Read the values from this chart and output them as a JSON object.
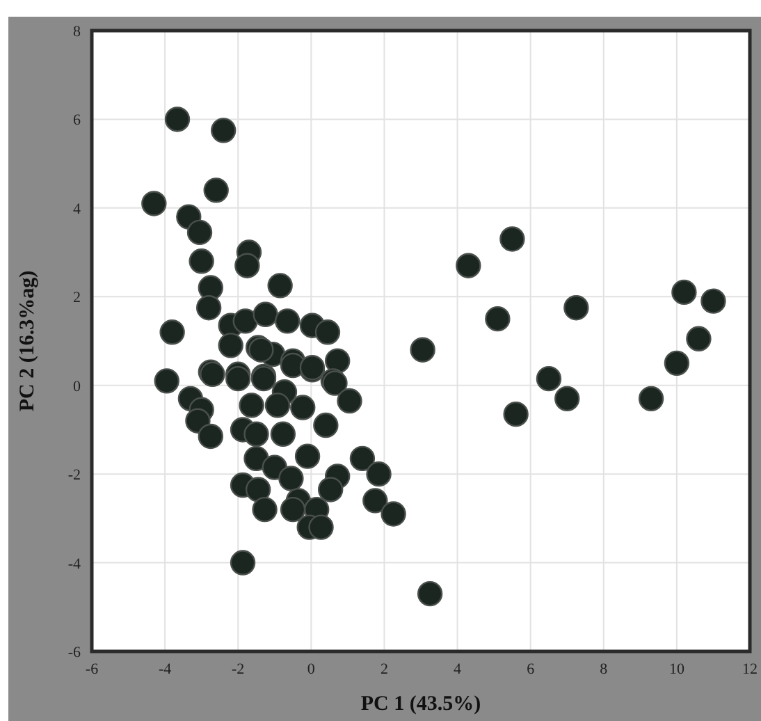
{
  "chart_data": {
    "type": "scatter",
    "xlabel": "PC 1 (43.5%)",
    "ylabel": "PC 2 (16.3%ag)",
    "xlim": [
      -6,
      12
    ],
    "ylim": [
      -6,
      8
    ],
    "xticks": [
      -6,
      -4,
      -2,
      0,
      2,
      4,
      6,
      8,
      10,
      12
    ],
    "yticks": [
      -6,
      -4,
      -2,
      0,
      2,
      4,
      6,
      8
    ],
    "grid": true,
    "marker": "circle",
    "series": [
      {
        "color": "#1c2620",
        "x": [
          3.05,
          3.25,
          4.3,
          5.5,
          5.1,
          5.6,
          7.25,
          6.5,
          7.0,
          9.3,
          10.2,
          11.0,
          10.6,
          10.0,
          1.4,
          1.85,
          1.75,
          2.25,
          -3.66,
          -2.4,
          -4.3,
          -2.6,
          -3.35,
          -3.05,
          -3.0,
          -1.7,
          -1.75,
          -2.75,
          -0.85,
          -2.8,
          -3.8,
          -2.2,
          -1.8,
          -1.25,
          -0.65,
          0.03,
          0.45,
          -2.2,
          -1.45,
          -1.05,
          -0.5,
          0.72,
          -3.95,
          -2.75,
          -2.0,
          -1.3,
          0.03,
          0.6,
          -1.37,
          -0.5,
          0.03,
          -2.7,
          -2.0,
          -1.3,
          0.65,
          -3.3,
          -3.0,
          -3.1,
          -2.75,
          1.05,
          -1.63,
          -0.73,
          -0.92,
          -0.23,
          0.4,
          -1.87,
          -1.5,
          -0.77,
          -0.1,
          -1.5,
          -1.0,
          -0.55,
          0.72,
          0.53,
          -1.87,
          -1.45,
          -1.27,
          -0.35,
          -0.5,
          0.15,
          -0.05,
          0.27,
          -1.87
        ],
        "values": [
          0.8,
          -4.7,
          2.7,
          3.3,
          1.5,
          -0.65,
          1.75,
          0.15,
          -0.3,
          -0.3,
          2.1,
          1.9,
          1.05,
          0.5,
          -1.65,
          -2.0,
          -2.6,
          -2.9,
          6.0,
          5.75,
          4.1,
          4.4,
          3.8,
          3.45,
          2.8,
          3.0,
          2.7,
          2.2,
          2.25,
          1.75,
          1.2,
          1.35,
          1.45,
          1.6,
          1.45,
          1.35,
          1.2,
          0.9,
          0.85,
          0.7,
          0.55,
          0.55,
          0.1,
          0.3,
          0.25,
          0.2,
          0.35,
          0.1,
          0.8,
          0.45,
          0.4,
          0.25,
          0.15,
          0.15,
          0.05,
          -0.3,
          -0.55,
          -0.8,
          -1.15,
          -0.35,
          -0.45,
          -0.15,
          -0.45,
          -0.5,
          -0.9,
          -1.0,
          -1.1,
          -1.1,
          -1.6,
          -1.65,
          -1.85,
          -2.1,
          -2.05,
          -2.35,
          -2.25,
          -2.35,
          -2.8,
          -2.6,
          -2.8,
          -2.8,
          -3.2,
          -3.2,
          -4.0
        ]
      }
    ]
  }
}
